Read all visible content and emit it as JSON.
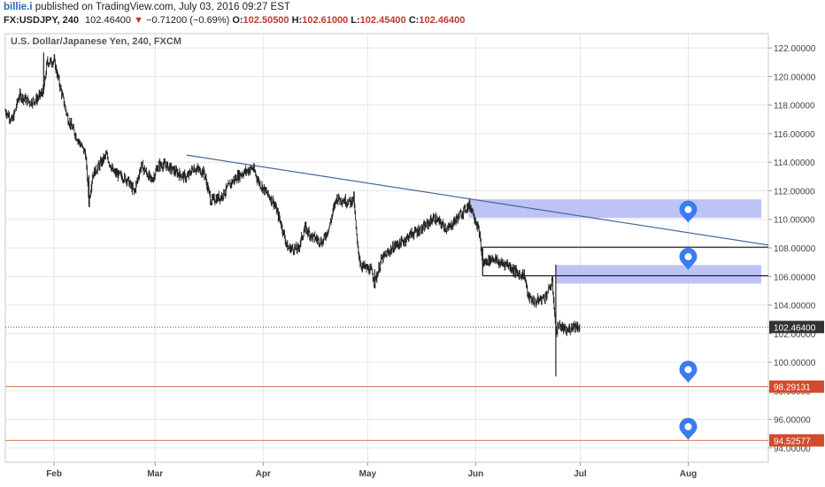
{
  "header": {
    "author": "billie.i",
    "published_text": "published on TradingView.com, July 03, 2016 09:27 EST",
    "symbol": "FX:USDJPY, 240",
    "last": "102.46400",
    "change_arrow": "▼",
    "change": "−0.71200 (−0.69%)",
    "open_label": "O:",
    "open": "102.50500",
    "high_label": "H:",
    "high": "102.61000",
    "low_label": "L:",
    "low": "102.45400",
    "close_label": "C:",
    "close": "102.46400"
  },
  "chart_title": "U.S. Dollar/Japanese Yen, 240, FXCM",
  "colors": {
    "candle": "#222222",
    "trendline": "#4a6a9a",
    "zone": "#b3b9f4",
    "horizontal_line": "#111111",
    "support_line": "#d9735a",
    "price_tag_bg": "#333333",
    "support_tag_bg": "#d24b2c",
    "marker": "#3a7bf0"
  },
  "chart_data": {
    "type": "candlestick",
    "x_ticks": [
      "Feb",
      "Mar",
      "Apr",
      "May",
      "Jun",
      "Jul",
      "Aug"
    ],
    "y_ticks": [
      "122.00000",
      "120.00000",
      "118.00000",
      "116.00000",
      "114.00000",
      "112.00000",
      "110.00000",
      "108.00000",
      "106.00000",
      "104.00000",
      "102.00000",
      "100.00000",
      "98.00000",
      "96.00000",
      "94.00000"
    ],
    "ylim": [
      93.0,
      123.0
    ],
    "x_range": [
      "2016-01-18",
      "2016-08-24"
    ],
    "last_price": 102.464,
    "last_price_label": "102.46400",
    "support_levels": [
      {
        "value": 98.29131,
        "label": "98.29131"
      },
      {
        "value": 94.52577,
        "label": "94.52577"
      }
    ],
    "price_path": [
      [
        "2016-01-18",
        117.6
      ],
      [
        "2016-01-20",
        116.9
      ],
      [
        "2016-01-22",
        118.7
      ],
      [
        "2016-01-25",
        118.2
      ],
      [
        "2016-01-27",
        118.4
      ],
      [
        "2016-01-29",
        119.0
      ],
      [
        "2016-01-30",
        121.0
      ],
      [
        "2016-02-01",
        121.1
      ],
      [
        "2016-02-03",
        119.0
      ],
      [
        "2016-02-05",
        117.0
      ],
      [
        "2016-02-08",
        115.5
      ],
      [
        "2016-02-10",
        114.6
      ],
      [
        "2016-02-11",
        111.2
      ],
      [
        "2016-02-12",
        113.1
      ],
      [
        "2016-02-16",
        114.5
      ],
      [
        "2016-02-18",
        113.3
      ],
      [
        "2016-02-22",
        112.8
      ],
      [
        "2016-02-24",
        111.9
      ],
      [
        "2016-02-26",
        113.8
      ],
      [
        "2016-02-29",
        112.7
      ],
      [
        "2016-03-02",
        113.8
      ],
      [
        "2016-03-04",
        113.8
      ],
      [
        "2016-03-07",
        113.3
      ],
      [
        "2016-03-10",
        112.9
      ],
      [
        "2016-03-12",
        113.6
      ],
      [
        "2016-03-15",
        113.3
      ],
      [
        "2016-03-17",
        111.3
      ],
      [
        "2016-03-20",
        111.6
      ],
      [
        "2016-03-23",
        112.6
      ],
      [
        "2016-03-25",
        113.1
      ],
      [
        "2016-03-29",
        113.6
      ],
      [
        "2016-03-31",
        112.5
      ],
      [
        "2016-04-04",
        111.2
      ],
      [
        "2016-04-06",
        109.8
      ],
      [
        "2016-04-08",
        108.0
      ],
      [
        "2016-04-11",
        107.9
      ],
      [
        "2016-04-13",
        109.4
      ],
      [
        "2016-04-15",
        108.8
      ],
      [
        "2016-04-18",
        108.4
      ],
      [
        "2016-04-20",
        109.5
      ],
      [
        "2016-04-22",
        111.5
      ],
      [
        "2016-04-26",
        111.2
      ],
      [
        "2016-04-27",
        111.5
      ],
      [
        "2016-04-28",
        108.2
      ],
      [
        "2016-04-29",
        106.8
      ],
      [
        "2016-05-02",
        106.4
      ],
      [
        "2016-05-03",
        105.6
      ],
      [
        "2016-05-05",
        107.2
      ],
      [
        "2016-05-09",
        108.2
      ],
      [
        "2016-05-11",
        108.4
      ],
      [
        "2016-05-13",
        108.9
      ],
      [
        "2016-05-17",
        109.4
      ],
      [
        "2016-05-20",
        110.1
      ],
      [
        "2016-05-24",
        109.3
      ],
      [
        "2016-05-26",
        109.9
      ],
      [
        "2016-05-30",
        111.0
      ],
      [
        "2016-05-31",
        110.7
      ],
      [
        "2016-06-02",
        109.1
      ],
      [
        "2016-06-03",
        106.9
      ],
      [
        "2016-06-06",
        107.3
      ],
      [
        "2016-06-08",
        106.9
      ],
      [
        "2016-06-10",
        106.9
      ],
      [
        "2016-06-13",
        106.2
      ],
      [
        "2016-06-15",
        106.1
      ],
      [
        "2016-06-16",
        104.6
      ],
      [
        "2016-06-18",
        104.2
      ],
      [
        "2016-06-21",
        104.6
      ],
      [
        "2016-06-23",
        105.6
      ],
      [
        "2016-06-24",
        102.2
      ],
      [
        "2016-06-25",
        102.6
      ],
      [
        "2016-06-27",
        102.1
      ],
      [
        "2016-06-29",
        102.6
      ],
      [
        "2016-07-01",
        102.46
      ]
    ],
    "extremes": [
      {
        "date": "2016-01-29",
        "high": 121.69,
        "low": 118.8
      },
      {
        "date": "2016-02-11",
        "high": 113.1,
        "low": 110.99
      },
      {
        "date": "2016-05-03",
        "high": 106.5,
        "low": 105.55
      },
      {
        "date": "2016-06-24",
        "high": 106.83,
        "low": 99.0
      }
    ],
    "trendline": {
      "from": [
        "2016-03-10",
        114.5
      ],
      "to": [
        "2016-08-24",
        108.2
      ]
    },
    "horizontal_segments": [
      {
        "from": "2016-06-03",
        "to": "2016-08-24",
        "value": 108.05
      },
      {
        "from": "2016-06-03",
        "to": "2016-08-24",
        "value": 106.05
      },
      {
        "from": "2016-06-03",
        "to": "2016-06-03",
        "value_from": 106.05,
        "value_to": 108.05
      }
    ],
    "zones": [
      {
        "from": "2016-05-30",
        "to": "2016-08-22",
        "top": 111.4,
        "bottom": 110.1
      },
      {
        "from": "2016-06-24",
        "to": "2016-08-22",
        "top": 106.8,
        "bottom": 105.5
      }
    ],
    "markers": [
      {
        "date": "2016-08-01",
        "value": 110.5
      },
      {
        "date": "2016-08-01",
        "value": 107.2
      },
      {
        "date": "2016-08-01",
        "value": 99.3
      },
      {
        "date": "2016-08-01",
        "value": 95.3
      }
    ]
  }
}
